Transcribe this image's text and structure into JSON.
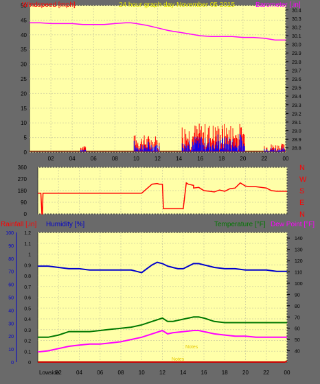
{
  "header": {
    "left_title": "Windspeed [mph]",
    "center_title": "24 hour graph day   November 05 2015",
    "right_title": "Barometer [.in]"
  },
  "x_ticks": [
    "02",
    "04",
    "06",
    "08",
    "10",
    "12",
    "14",
    "16",
    "18",
    "20",
    "22",
    "00"
  ],
  "colors": {
    "frame": "#6a6a6a",
    "plot_bg": "#ffffa8",
    "grid": "#d8d8a0",
    "wind": "#ff0000",
    "gust_low": "#0000ff",
    "barometer": "#ff00ff",
    "humidity": "#0000cc",
    "temperature": "#007700",
    "dewpoint": "#ff00ff",
    "rain": "#cc0000",
    "title_yellow": "#e6e600"
  },
  "direction_labels": [
    "N",
    "W",
    "S",
    "E",
    "N"
  ],
  "bottom_header": {
    "rainfall": "Rainfall [.in]",
    "humidity": "Humidity [%]",
    "temperature": "Temperature [°F]",
    "dewpoint": "Dew Point [°F]"
  },
  "bottom_notes": {
    "lowside": "Lowside",
    "note_b": "Notes",
    "note_c": "Notes"
  },
  "chart_data": [
    {
      "type": "line",
      "name": "wind-barometer",
      "title": "24 hour graph day   November 05 2015",
      "left_axis": {
        "label": "Windspeed [mph]",
        "ticks": [
          0,
          5,
          10,
          15,
          20,
          25,
          30,
          35,
          40,
          45,
          50
        ],
        "range": [
          0,
          50
        ]
      },
      "right_axis": {
        "label": "Barometer [.in]",
        "ticks": [
          28.8,
          28.9,
          29.0,
          29.1,
          29.2,
          29.3,
          29.4,
          29.5,
          29.6,
          29.7,
          29.8,
          29.9,
          30.0,
          30.1,
          30.2,
          30.3,
          30.4
        ],
        "range": [
          28.75,
          30.45
        ]
      },
      "x_range_hours": [
        0,
        24
      ],
      "series": [
        {
          "name": "Barometer",
          "axis": "right",
          "x": [
            0,
            1,
            2,
            3,
            4,
            5,
            6,
            7,
            8,
            9,
            9.5,
            10,
            11,
            12,
            13,
            14,
            15,
            16,
            17,
            18,
            19,
            20,
            21,
            22,
            23,
            24
          ],
          "values": [
            30.25,
            30.25,
            30.24,
            30.24,
            30.24,
            30.23,
            30.23,
            30.23,
            30.24,
            30.25,
            30.25,
            30.24,
            30.22,
            30.19,
            30.16,
            30.14,
            30.12,
            30.1,
            30.09,
            30.09,
            30.09,
            30.08,
            30.08,
            30.07,
            30.05,
            30.05
          ]
        }
      ],
      "wind_bursts": [
        {
          "from": 4.8,
          "to": 5.3,
          "max": 3
        },
        {
          "from": 9.8,
          "to": 12.2,
          "max": 6
        },
        {
          "from": 14.3,
          "to": 20.2,
          "max": 10
        },
        {
          "from": 22.0,
          "to": 24.0,
          "max": 3
        }
      ]
    },
    {
      "type": "line",
      "name": "wind-direction",
      "left_axis": {
        "ticks": [
          0,
          90,
          180,
          270,
          360
        ],
        "range": [
          0,
          360
        ]
      },
      "x_range_hours": [
        0,
        24
      ],
      "series": [
        {
          "name": "Direction",
          "x": [
            0,
            0.3,
            0.4,
            0.45,
            0.5,
            0.6,
            9,
            10,
            10.5,
            11,
            11.5,
            11.7,
            12,
            12.1,
            14,
            14.3,
            14.5,
            15,
            15,
            15.5,
            16,
            16.5,
            17,
            17.5,
            18,
            18.5,
            19,
            19.5,
            20,
            20.5,
            21,
            22,
            22.5,
            23,
            24
          ],
          "values": [
            160,
            160,
            0,
            0,
            160,
            160,
            160,
            160,
            195,
            230,
            235,
            230,
            230,
            40,
            40,
            240,
            230,
            220,
            200,
            205,
            180,
            175,
            170,
            185,
            175,
            195,
            200,
            240,
            215,
            210,
            210,
            200,
            180,
            175,
            175
          ]
        }
      ]
    },
    {
      "type": "line",
      "name": "rain-humidity-temp-dew",
      "left_axis_rain": {
        "label": "Rainfall [.in]",
        "ticks": [
          0,
          0.1,
          0.2,
          0.3,
          0.4,
          0.5,
          0.6,
          0.7,
          0.8,
          0.9,
          1.0,
          1.1,
          1.2
        ],
        "range": [
          0,
          1.2
        ]
      },
      "left_axis_humidity": {
        "label": "Humidity [%]",
        "ticks": [
          0,
          10,
          20,
          30,
          40,
          50,
          60,
          70,
          80,
          90,
          100
        ],
        "range": [
          0,
          100
        ]
      },
      "right_axis": {
        "label": "Temperature [°F]",
        "ticks": [
          40,
          50,
          60,
          70,
          80,
          90,
          100,
          110,
          120,
          130,
          140
        ],
        "range": [
          30,
          145
        ]
      },
      "x_range_hours": [
        0,
        24
      ],
      "series": [
        {
          "name": "Humidity",
          "axis": "humidity",
          "x": [
            0,
            1,
            2,
            3,
            4,
            5,
            6,
            7,
            8,
            9,
            9.5,
            10,
            10.5,
            11,
            11.5,
            12,
            12.5,
            13,
            13.5,
            14,
            14.5,
            15,
            15.5,
            16,
            16.5,
            17,
            18,
            19,
            20,
            21,
            22,
            23,
            24
          ],
          "values": [
            74,
            74,
            73,
            72,
            72,
            71,
            71,
            71,
            71,
            71,
            70,
            69,
            72,
            75,
            77,
            76,
            74,
            73,
            72,
            72,
            74,
            76,
            76,
            75,
            74,
            73,
            72,
            72,
            71,
            71,
            71,
            70,
            70
          ]
        },
        {
          "name": "Temperature",
          "axis": "right",
          "x": [
            0,
            1,
            2,
            3,
            4,
            5,
            6,
            7,
            8,
            9,
            10,
            11,
            12,
            12.5,
            13,
            14,
            15,
            15.5,
            16,
            17,
            18,
            19,
            20,
            21,
            22,
            23,
            24
          ],
          "values": [
            52,
            52,
            54,
            57,
            57,
            57,
            58,
            59,
            60,
            61,
            63,
            66,
            69,
            66,
            66,
            68,
            70,
            70,
            69,
            66,
            65,
            65,
            65,
            65,
            65,
            65,
            65
          ]
        },
        {
          "name": "Dew Point",
          "axis": "right",
          "x": [
            0,
            1,
            2,
            3,
            4,
            5,
            6,
            7,
            8,
            9,
            10,
            11,
            12,
            12.5,
            13,
            14,
            15,
            15.5,
            16,
            17,
            18,
            19,
            20,
            21,
            22,
            23,
            24
          ],
          "values": [
            39,
            40,
            42,
            44,
            45,
            46,
            46,
            47,
            48,
            50,
            52,
            55,
            58,
            55,
            56,
            57,
            58,
            58,
            57,
            55,
            54,
            53,
            53,
            52,
            52,
            52,
            52
          ]
        },
        {
          "name": "Rainfall",
          "axis": "rain",
          "x": [
            0,
            23.8,
            24
          ],
          "values": [
            0,
            0,
            0.01
          ]
        }
      ]
    }
  ]
}
